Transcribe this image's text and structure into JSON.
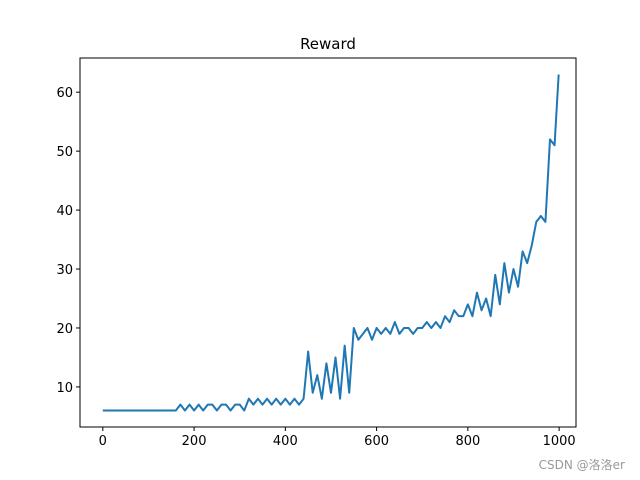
{
  "chart_data": {
    "type": "line",
    "title": "Reward",
    "watermark": "CSDN @洛洛er",
    "color": "#1f77b4",
    "x": [
      0,
      10,
      20,
      30,
      40,
      50,
      60,
      70,
      80,
      90,
      100,
      110,
      120,
      130,
      140,
      150,
      160,
      170,
      180,
      190,
      200,
      210,
      220,
      230,
      240,
      250,
      260,
      270,
      280,
      290,
      300,
      310,
      320,
      330,
      340,
      350,
      360,
      370,
      380,
      390,
      400,
      410,
      420,
      430,
      440,
      450,
      460,
      470,
      480,
      490,
      500,
      510,
      520,
      530,
      540,
      550,
      560,
      570,
      580,
      590,
      600,
      610,
      620,
      630,
      640,
      650,
      660,
      670,
      680,
      690,
      700,
      710,
      720,
      730,
      740,
      750,
      760,
      770,
      780,
      790,
      800,
      810,
      820,
      830,
      840,
      850,
      860,
      870,
      880,
      890,
      900,
      910,
      920,
      930,
      940,
      950,
      960,
      970,
      980,
      990,
      999
    ],
    "values": [
      6,
      6,
      6,
      6,
      6,
      6,
      6,
      6,
      6,
      6,
      6,
      6,
      6,
      6,
      6,
      6,
      6,
      7,
      6,
      7,
      6,
      7,
      6,
      7,
      7,
      6,
      7,
      7,
      6,
      7,
      7,
      6,
      8,
      7,
      8,
      7,
      8,
      7,
      8,
      7,
      8,
      7,
      8,
      7,
      8,
      16,
      9,
      12,
      8,
      14,
      9,
      15,
      8,
      17,
      9,
      20,
      18,
      19,
      20,
      18,
      20,
      19,
      20,
      19,
      21,
      19,
      20,
      20,
      19,
      20,
      20,
      21,
      20,
      21,
      20,
      22,
      21,
      23,
      22,
      22,
      24,
      22,
      26,
      23,
      25,
      22,
      29,
      24,
      31,
      26,
      30,
      27,
      33,
      31,
      34,
      38,
      39,
      38,
      52,
      51,
      63
    ],
    "xlim": [
      -50,
      1037
    ],
    "ylim": [
      3.2,
      65.8
    ],
    "xticks": [
      0,
      200,
      400,
      600,
      800,
      1000
    ],
    "yticks": [
      10,
      20,
      30,
      40,
      50,
      60
    ]
  }
}
